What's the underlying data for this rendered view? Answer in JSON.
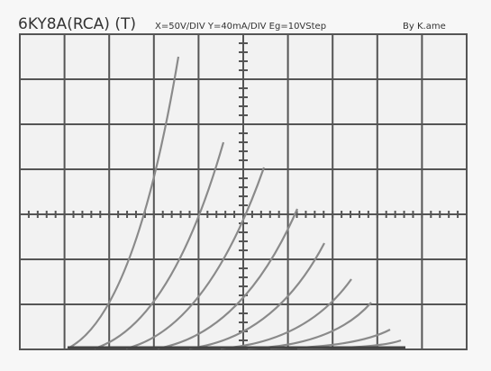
{
  "header": {
    "title": "6KY8A(RCA) (T)",
    "settings": "X=50V/DIV Y=40mA/DIV Eg=10VStep",
    "author": "By K.ame"
  }
}
